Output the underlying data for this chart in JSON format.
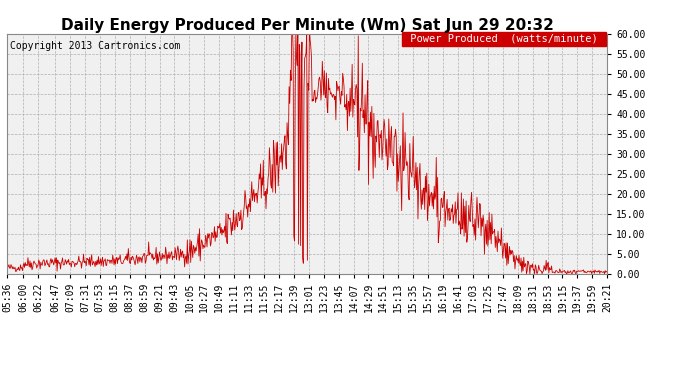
{
  "title": "Daily Energy Produced Per Minute (Wm) Sat Jun 29 20:32",
  "copyright": "Copyright 2013 Cartronics.com",
  "legend_label": "Power Produced  (watts/minute)",
  "legend_bg": "#cc0000",
  "legend_text_color": "#ffffff",
  "line_color": "#cc0000",
  "background_color": "#ffffff",
  "plot_bg_color": "#f0f0f0",
  "grid_color": "#aaaaaa",
  "ylim": [
    0,
    60
  ],
  "yticks": [
    0,
    5,
    10,
    15,
    20,
    25,
    30,
    35,
    40,
    45,
    50,
    55,
    60
  ],
  "title_fontsize": 11,
  "copyright_fontsize": 7,
  "tick_fontsize": 7,
  "legend_fontsize": 7.5
}
